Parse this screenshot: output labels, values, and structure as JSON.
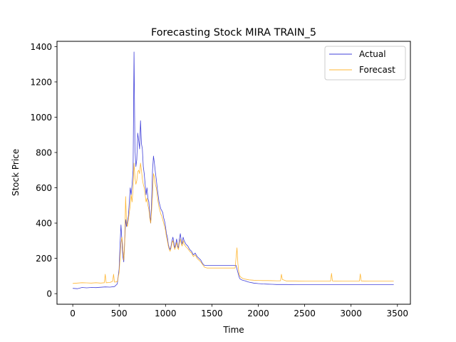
{
  "chart_data": {
    "type": "line",
    "title": "Forecasting Stock MIRA TRAIN_5",
    "xlabel": "Time",
    "ylabel": "Stock Price",
    "xlim": [
      -170,
      3640
    ],
    "ylim": [
      -60,
      1430
    ],
    "xticks": [
      0,
      500,
      1000,
      1500,
      2000,
      2500,
      3000,
      3500
    ],
    "yticks": [
      0,
      200,
      400,
      600,
      800,
      1000,
      1200,
      1400
    ],
    "grid": false,
    "legend_position": "upper right",
    "series": [
      {
        "name": "Actual",
        "color": "#0000cc",
        "points": [
          [
            0,
            30
          ],
          [
            50,
            28
          ],
          [
            100,
            35
          ],
          [
            150,
            33
          ],
          [
            200,
            35
          ],
          [
            250,
            34
          ],
          [
            300,
            36
          ],
          [
            350,
            38
          ],
          [
            400,
            37
          ],
          [
            450,
            40
          ],
          [
            480,
            55
          ],
          [
            500,
            140
          ],
          [
            510,
            280
          ],
          [
            520,
            390
          ],
          [
            530,
            300
          ],
          [
            540,
            210
          ],
          [
            550,
            180
          ],
          [
            560,
            300
          ],
          [
            570,
            420
          ],
          [
            580,
            380
          ],
          [
            590,
            410
          ],
          [
            600,
            440
          ],
          [
            610,
            520
          ],
          [
            620,
            600
          ],
          [
            630,
            560
          ],
          [
            640,
            620
          ],
          [
            650,
            700
          ],
          [
            660,
            1370
          ],
          [
            670,
            820
          ],
          [
            680,
            720
          ],
          [
            690,
            760
          ],
          [
            700,
            910
          ],
          [
            710,
            870
          ],
          [
            720,
            820
          ],
          [
            730,
            980
          ],
          [
            740,
            850
          ],
          [
            750,
            820
          ],
          [
            760,
            720
          ],
          [
            770,
            680
          ],
          [
            780,
            620
          ],
          [
            790,
            560
          ],
          [
            800,
            600
          ],
          [
            810,
            540
          ],
          [
            820,
            520
          ],
          [
            830,
            450
          ],
          [
            840,
            400
          ],
          [
            850,
            520
          ],
          [
            860,
            700
          ],
          [
            870,
            780
          ],
          [
            880,
            740
          ],
          [
            890,
            690
          ],
          [
            900,
            650
          ],
          [
            910,
            600
          ],
          [
            920,
            560
          ],
          [
            930,
            520
          ],
          [
            940,
            500
          ],
          [
            950,
            480
          ],
          [
            960,
            470
          ],
          [
            970,
            460
          ],
          [
            980,
            430
          ],
          [
            990,
            410
          ],
          [
            1000,
            380
          ],
          [
            1010,
            340
          ],
          [
            1020,
            320
          ],
          [
            1030,
            280
          ],
          [
            1040,
            260
          ],
          [
            1050,
            250
          ],
          [
            1060,
            270
          ],
          [
            1070,
            300
          ],
          [
            1080,
            320
          ],
          [
            1090,
            290
          ],
          [
            1100,
            260
          ],
          [
            1110,
            280
          ],
          [
            1120,
            310
          ],
          [
            1130,
            270
          ],
          [
            1140,
            260
          ],
          [
            1150,
            310
          ],
          [
            1160,
            340
          ],
          [
            1170,
            300
          ],
          [
            1180,
            280
          ],
          [
            1190,
            320
          ],
          [
            1200,
            300
          ],
          [
            1220,
            280
          ],
          [
            1240,
            270
          ],
          [
            1260,
            250
          ],
          [
            1280,
            240
          ],
          [
            1300,
            220
          ],
          [
            1320,
            230
          ],
          [
            1340,
            210
          ],
          [
            1360,
            200
          ],
          [
            1380,
            190
          ],
          [
            1400,
            170
          ],
          [
            1420,
            160
          ],
          [
            1450,
            160
          ],
          [
            1500,
            160
          ],
          [
            1550,
            160
          ],
          [
            1600,
            160
          ],
          [
            1650,
            160
          ],
          [
            1700,
            160
          ],
          [
            1760,
            160
          ],
          [
            1770,
            140
          ],
          [
            1780,
            120
          ],
          [
            1790,
            100
          ],
          [
            1800,
            85
          ],
          [
            1820,
            78
          ],
          [
            1840,
            75
          ],
          [
            1860,
            72
          ],
          [
            1880,
            68
          ],
          [
            1900,
            65
          ],
          [
            1950,
            60
          ],
          [
            2000,
            57
          ],
          [
            2050,
            55
          ],
          [
            2100,
            54
          ],
          [
            2150,
            53
          ],
          [
            2200,
            52
          ],
          [
            2250,
            52
          ],
          [
            2300,
            52
          ],
          [
            2400,
            51
          ],
          [
            2500,
            51
          ],
          [
            2600,
            51
          ],
          [
            2700,
            51
          ],
          [
            2800,
            51
          ],
          [
            2900,
            51
          ],
          [
            3000,
            51
          ],
          [
            3100,
            51
          ],
          [
            3200,
            51
          ],
          [
            3300,
            51
          ],
          [
            3400,
            51
          ],
          [
            3460,
            51
          ]
        ]
      },
      {
        "name": "Forecast",
        "color": "#ffa500",
        "points": [
          [
            0,
            58
          ],
          [
            50,
            60
          ],
          [
            100,
            62
          ],
          [
            150,
            61
          ],
          [
            200,
            60
          ],
          [
            250,
            62
          ],
          [
            300,
            60
          ],
          [
            340,
            62
          ],
          [
            350,
            110
          ],
          [
            360,
            62
          ],
          [
            400,
            63
          ],
          [
            430,
            70
          ],
          [
            440,
            110
          ],
          [
            450,
            65
          ],
          [
            480,
            68
          ],
          [
            500,
            120
          ],
          [
            510,
            200
          ],
          [
            520,
            290
          ],
          [
            530,
            320
          ],
          [
            540,
            260
          ],
          [
            550,
            190
          ],
          [
            560,
            280
          ],
          [
            570,
            550
          ],
          [
            580,
            400
          ],
          [
            590,
            380
          ],
          [
            600,
            420
          ],
          [
            610,
            460
          ],
          [
            620,
            500
          ],
          [
            630,
            560
          ],
          [
            640,
            520
          ],
          [
            650,
            600
          ],
          [
            660,
            740
          ],
          [
            670,
            660
          ],
          [
            680,
            620
          ],
          [
            690,
            640
          ],
          [
            700,
            690
          ],
          [
            710,
            700
          ],
          [
            720,
            680
          ],
          [
            730,
            740
          ],
          [
            740,
            700
          ],
          [
            750,
            650
          ],
          [
            760,
            620
          ],
          [
            770,
            600
          ],
          [
            780,
            560
          ],
          [
            790,
            520
          ],
          [
            800,
            540
          ],
          [
            810,
            500
          ],
          [
            820,
            480
          ],
          [
            830,
            430
          ],
          [
            840,
            400
          ],
          [
            850,
            470
          ],
          [
            860,
            560
          ],
          [
            870,
            680
          ],
          [
            880,
            660
          ],
          [
            890,
            620
          ],
          [
            900,
            600
          ],
          [
            910,
            560
          ],
          [
            920,
            520
          ],
          [
            930,
            490
          ],
          [
            940,
            470
          ],
          [
            950,
            450
          ],
          [
            960,
            440
          ],
          [
            970,
            420
          ],
          [
            980,
            400
          ],
          [
            990,
            380
          ],
          [
            1000,
            360
          ],
          [
            1010,
            320
          ],
          [
            1020,
            300
          ],
          [
            1030,
            270
          ],
          [
            1040,
            250
          ],
          [
            1050,
            240
          ],
          [
            1060,
            260
          ],
          [
            1070,
            290
          ],
          [
            1080,
            300
          ],
          [
            1090,
            270
          ],
          [
            1100,
            250
          ],
          [
            1110,
            270
          ],
          [
            1120,
            290
          ],
          [
            1130,
            260
          ],
          [
            1140,
            250
          ],
          [
            1150,
            290
          ],
          [
            1160,
            310
          ],
          [
            1170,
            280
          ],
          [
            1180,
            270
          ],
          [
            1190,
            300
          ],
          [
            1200,
            280
          ],
          [
            1220,
            265
          ],
          [
            1240,
            255
          ],
          [
            1260,
            240
          ],
          [
            1280,
            230
          ],
          [
            1300,
            210
          ],
          [
            1320,
            220
          ],
          [
            1340,
            200
          ],
          [
            1360,
            190
          ],
          [
            1380,
            180
          ],
          [
            1400,
            165
          ],
          [
            1420,
            150
          ],
          [
            1450,
            145
          ],
          [
            1500,
            145
          ],
          [
            1550,
            145
          ],
          [
            1600,
            145
          ],
          [
            1650,
            145
          ],
          [
            1700,
            145
          ],
          [
            1750,
            145
          ],
          [
            1770,
            260
          ],
          [
            1780,
            170
          ],
          [
            1790,
            120
          ],
          [
            1800,
            100
          ],
          [
            1820,
            90
          ],
          [
            1840,
            85
          ],
          [
            1860,
            82
          ],
          [
            1880,
            80
          ],
          [
            1900,
            78
          ],
          [
            1950,
            76
          ],
          [
            2000,
            75
          ],
          [
            2050,
            74
          ],
          [
            2100,
            74
          ],
          [
            2200,
            73
          ],
          [
            2240,
            73
          ],
          [
            2250,
            110
          ],
          [
            2260,
            80
          ],
          [
            2300,
            72
          ],
          [
            2400,
            72
          ],
          [
            2500,
            71
          ],
          [
            2600,
            71
          ],
          [
            2700,
            71
          ],
          [
            2780,
            71
          ],
          [
            2790,
            115
          ],
          [
            2800,
            72
          ],
          [
            2900,
            71
          ],
          [
            3000,
            71
          ],
          [
            3090,
            71
          ],
          [
            3100,
            112
          ],
          [
            3110,
            72
          ],
          [
            3200,
            71
          ],
          [
            3300,
            71
          ],
          [
            3400,
            71
          ],
          [
            3460,
            71
          ]
        ]
      }
    ]
  }
}
